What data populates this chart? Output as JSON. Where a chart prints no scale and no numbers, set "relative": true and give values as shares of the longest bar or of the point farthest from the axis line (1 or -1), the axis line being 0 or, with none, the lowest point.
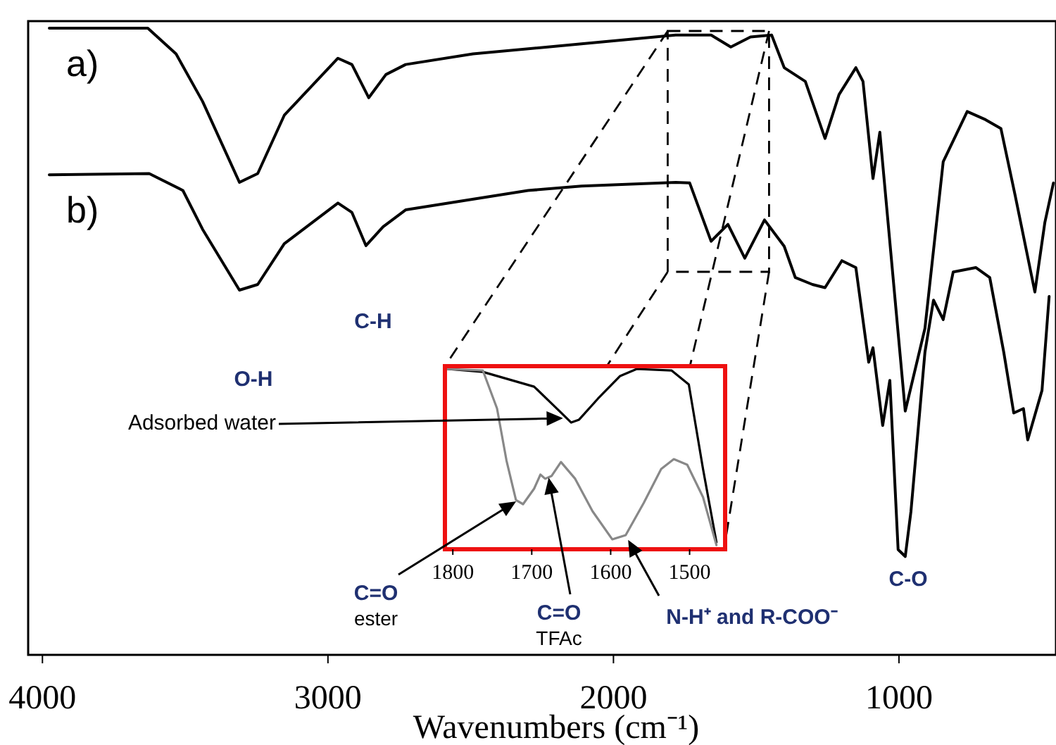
{
  "chart_data": [
    {
      "type": "line",
      "xlabel": "Wavenumbers (cm⁻¹)",
      "xlim": [
        4050,
        450
      ],
      "xticks": [
        4000,
        3000,
        2000,
        1000
      ],
      "relative": true,
      "tick_labels": "x",
      "grid": false,
      "line_style": "solid",
      "marker": "none",
      "series": [
        {
          "name": "a)",
          "color": "#000000",
          "x": [
            3976,
            3631,
            3532,
            3439,
            3310,
            3246,
            3153,
            2965,
            2916,
            2857,
            2797,
            2728,
            2492,
            2112,
            1782,
            1658,
            1589,
            1520,
            1446,
            1402,
            1328,
            1259,
            1210,
            1151,
            1126,
            1091,
            1067,
            978,
            909,
            845,
            761,
            697,
            643,
            593,
            524,
            489,
            459
          ],
          "values": [
            1.0,
            1.0,
            0.959,
            0.883,
            0.754,
            0.768,
            0.861,
            0.952,
            0.942,
            0.889,
            0.926,
            0.942,
            0.959,
            0.975,
            0.989,
            0.989,
            0.97,
            0.986,
            0.989,
            0.937,
            0.915,
            0.824,
            0.894,
            0.937,
            0.915,
            0.76,
            0.834,
            0.389,
            0.521,
            0.787,
            0.867,
            0.854,
            0.84,
            0.733,
            0.579,
            0.69,
            0.753
          ]
        },
        {
          "name": "b)",
          "color": "#000000",
          "x": [
            3976,
            3626,
            3508,
            3439,
            3310,
            3246,
            3153,
            2965,
            2916,
            2867,
            2807,
            2728,
            2299,
            2112,
            1782,
            1733,
            1658,
            1599,
            1540,
            1471,
            1402,
            1363,
            1303,
            1259,
            1200,
            1151,
            1106,
            1091,
            1057,
            1032,
            1003,
            978,
            958,
            909,
            879,
            845,
            810,
            731,
            682,
            633,
            598,
            564,
            549,
            499,
            474
          ],
          "values": [
            0.766,
            0.768,
            0.741,
            0.679,
            0.582,
            0.591,
            0.656,
            0.721,
            0.706,
            0.653,
            0.683,
            0.71,
            0.741,
            0.748,
            0.754,
            0.753,
            0.66,
            0.687,
            0.633,
            0.694,
            0.652,
            0.602,
            0.591,
            0.586,
            0.629,
            0.618,
            0.467,
            0.49,
            0.366,
            0.438,
            0.168,
            0.157,
            0.229,
            0.483,
            0.566,
            0.535,
            0.611,
            0.618,
            0.602,
            0.483,
            0.386,
            0.393,
            0.343,
            0.422,
            0.572
          ]
        }
      ],
      "annotations": [
        "O-H",
        "C-H",
        "C-O"
      ]
    },
    {
      "type": "line",
      "xlim": [
        1810,
        1455
      ],
      "xticks": [
        1800,
        1700,
        1600,
        1500
      ],
      "relative": true,
      "tick_labels": "x",
      "grid": false,
      "line_style": "solid",
      "marker": "none",
      "series": [
        {
          "color": "#000000",
          "x": [
            1807,
            1762,
            1697,
            1663,
            1650,
            1640,
            1616,
            1588,
            1567,
            1523,
            1501,
            1483,
            1466
          ],
          "values": [
            1.0,
            0.984,
            0.902,
            0.758,
            0.703,
            0.719,
            0.836,
            0.961,
            1.0,
            0.992,
            0.914,
            0.445,
            0.039
          ]
        },
        {
          "color": "#888888",
          "x": [
            1807,
            1762,
            1744,
            1732,
            1720,
            1711,
            1697,
            1689,
            1683,
            1675,
            1663,
            1645,
            1623,
            1598,
            1581,
            1558,
            1536,
            1520,
            1503,
            1483,
            1466
          ],
          "values": [
            1.0,
            0.992,
            0.781,
            0.492,
            0.273,
            0.25,
            0.336,
            0.414,
            0.391,
            0.406,
            0.484,
            0.391,
            0.211,
            0.055,
            0.078,
            0.258,
            0.445,
            0.5,
            0.469,
            0.289,
            0.023
          ]
        }
      ],
      "annotations": [
        "Adsorbed water",
        "C=O\nester",
        "C=O\nTFAc",
        "N-H⁺ and R-COO⁻"
      ]
    }
  ]
}
